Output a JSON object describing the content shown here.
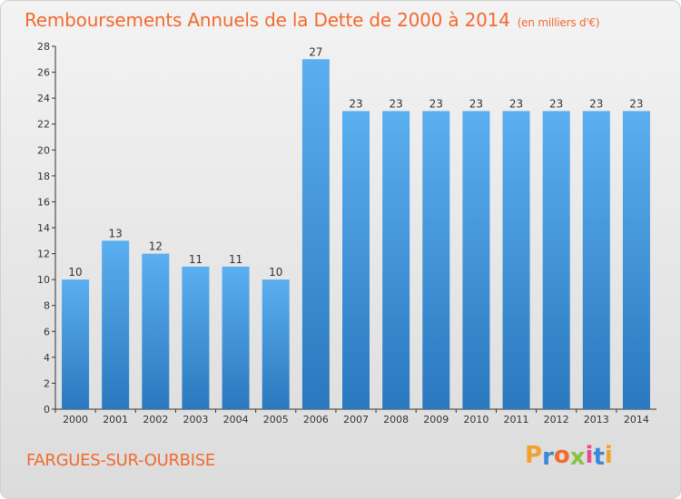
{
  "header": {
    "title": "Remboursements Annuels de la Dette de 2000 à 2014",
    "unit": "(en milliers d'€)"
  },
  "location": "FARGUES-SUR-OURBISE",
  "brand": {
    "name": "Proxiti",
    "letter_colors": [
      "#f2a02e",
      "#3c88d8",
      "#f26a2e",
      "#8ac43f",
      "#e64c8c",
      "#3c88d8",
      "#f2a02e"
    ]
  },
  "colors": {
    "title": "#f26a2e",
    "bar_top": "#5aaff0",
    "bar_bottom": "#2a78be",
    "axis": "#333333"
  },
  "chart_data": {
    "type": "bar",
    "categories": [
      "2000",
      "2001",
      "2002",
      "2003",
      "2004",
      "2005",
      "2006",
      "2007",
      "2008",
      "2009",
      "2010",
      "2011",
      "2012",
      "2013",
      "2014"
    ],
    "values": [
      10,
      13,
      12,
      11,
      11,
      10,
      27,
      23,
      23,
      23,
      23,
      23,
      23,
      23,
      23
    ],
    "data_labels": [
      "10",
      "13",
      "12",
      "11",
      "11",
      "10",
      "27",
      "23",
      "23",
      "23",
      "23",
      "23",
      "23",
      "23",
      "23"
    ],
    "yticks": [
      "0",
      "2",
      "4",
      "6",
      "8",
      "10",
      "12",
      "14",
      "16",
      "18",
      "20",
      "22",
      "24",
      "26",
      "28"
    ],
    "ylim": [
      0,
      28
    ],
    "grid": false,
    "legend": "none"
  }
}
